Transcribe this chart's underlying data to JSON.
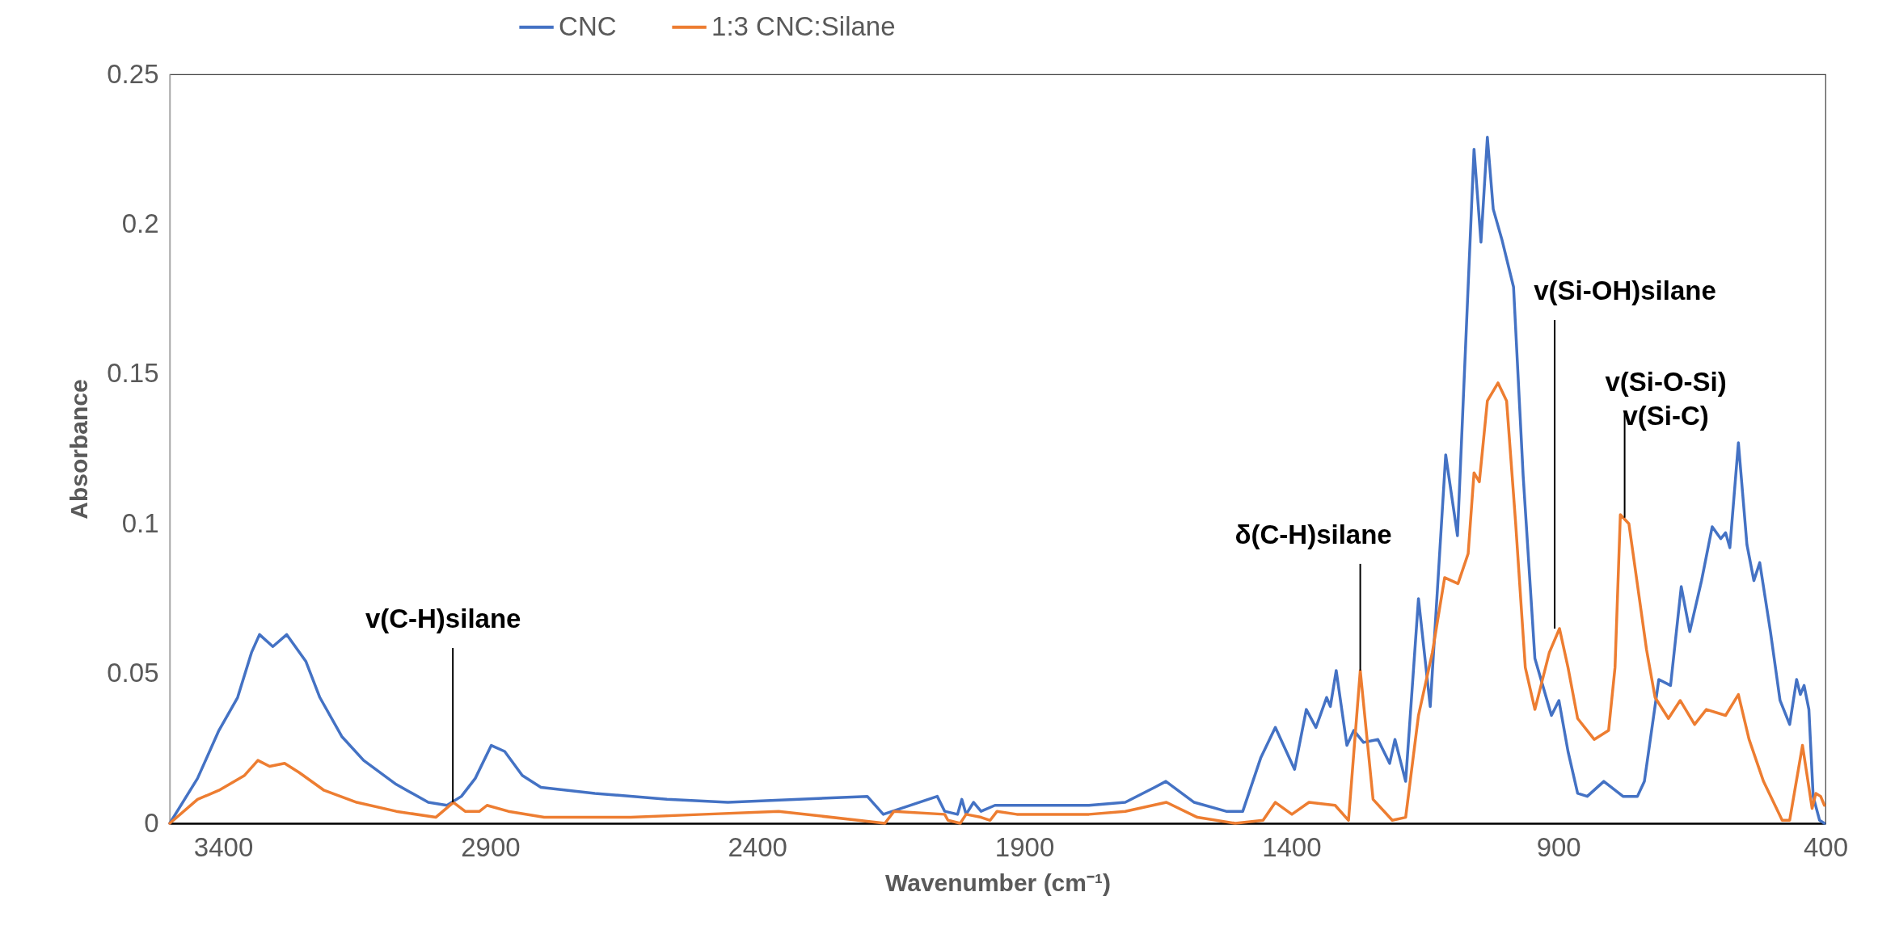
{
  "chart_data": {
    "type": "line",
    "xlabel": "Wavenumber (cm⁻¹)",
    "ylabel": "Absorbance",
    "xlim": [
      3500,
      400
    ],
    "xticks": [
      3400,
      2900,
      2400,
      1900,
      1400,
      900,
      400
    ],
    "ylim": [
      0,
      0.25
    ],
    "yticks": [
      0,
      0.05,
      0.1,
      0.15,
      0.2,
      0.25
    ],
    "legend": "top",
    "series": [
      {
        "name": "CNC",
        "color": "#4472c4",
        "x": [
          3500,
          3448,
          3408,
          3373,
          3347,
          3332,
          3307,
          3281,
          3245,
          3219,
          3178,
          3137,
          3076,
          3016,
          2981,
          2954,
          2928,
          2898,
          2873,
          2840,
          2805,
          2704,
          2569,
          2455,
          2194,
          2164,
          2063,
          2049,
          2025,
          2017,
          2009,
          1995,
          1981,
          1955,
          1914,
          1779,
          1711,
          1656,
          1635,
          1582,
          1522,
          1491,
          1457,
          1430,
          1394,
          1372,
          1354,
          1334,
          1327,
          1316,
          1296,
          1283,
          1265,
          1238,
          1216,
          1206,
          1186,
          1162,
          1140,
          1111,
          1089,
          1058,
          1045,
          1033,
          1022,
          1006,
          984,
          966,
          944,
          913,
          899,
          882,
          864,
          846,
          815,
          779,
          752,
          739,
          712,
          690,
          670,
          654,
          632,
          612,
          596,
          587,
          579,
          563,
          547,
          534,
          523,
          503,
          485,
          467,
          454,
          447,
          440,
          431,
          423,
          411,
          402
        ],
        "values": [
          0,
          0.015,
          0.031,
          0.042,
          0.057,
          0.063,
          0.059,
          0.063,
          0.054,
          0.042,
          0.029,
          0.021,
          0.013,
          0.007,
          0.006,
          0.009,
          0.015,
          0.026,
          0.024,
          0.016,
          0.012,
          0.01,
          0.008,
          0.007,
          0.009,
          0.003,
          0.009,
          0.004,
          0.003,
          0.008,
          0.003,
          0.007,
          0.004,
          0.006,
          0.006,
          0.006,
          0.007,
          0.012,
          0.014,
          0.007,
          0.004,
          0.004,
          0.022,
          0.032,
          0.018,
          0.038,
          0.032,
          0.042,
          0.039,
          0.051,
          0.026,
          0.031,
          0.027,
          0.028,
          0.02,
          0.028,
          0.014,
          0.075,
          0.039,
          0.123,
          0.096,
          0.225,
          0.194,
          0.229,
          0.205,
          0.195,
          0.179,
          0.116,
          0.055,
          0.036,
          0.041,
          0.024,
          0.01,
          0.009,
          0.014,
          0.009,
          0.009,
          0.014,
          0.048,
          0.046,
          0.079,
          0.064,
          0.081,
          0.099,
          0.095,
          0.097,
          0.092,
          0.127,
          0.093,
          0.081,
          0.087,
          0.064,
          0.041,
          0.033,
          0.048,
          0.043,
          0.046,
          0.038,
          0.009,
          0.001,
          0
        ]
      },
      {
        "name": "1:3 CNC:Silane",
        "color": "#ed7d31",
        "x": [
          3500,
          3448,
          3408,
          3360,
          3335,
          3313,
          3285,
          3258,
          3211,
          3150,
          3076,
          3002,
          2969,
          2947,
          2920,
          2906,
          2866,
          2799,
          2637,
          2500,
          2360,
          2161,
          2144,
          2049,
          2043,
          2020,
          2009,
          1981,
          1964,
          1951,
          1914,
          1779,
          1711,
          1634,
          1576,
          1505,
          1453,
          1430,
          1399,
          1367,
          1318,
          1293,
          1271,
          1247,
          1211,
          1186,
          1162,
          1136,
          1113,
          1088,
          1069,
          1058,
          1048,
          1033,
          1013,
          997,
          980,
          962,
          944,
          917,
          898,
          882,
          864,
          833,
          806,
          794,
          784,
          768,
          735,
          719,
          694,
          672,
          645,
          623,
          587,
          563,
          543,
          516,
          481,
          467,
          443,
          425,
          418,
          409,
          402
        ],
        "values": [
          0,
          0.008,
          0.011,
          0.016,
          0.021,
          0.019,
          0.02,
          0.017,
          0.011,
          0.007,
          0.004,
          0.002,
          0.007,
          0.004,
          0.004,
          0.006,
          0.004,
          0.002,
          0.002,
          0.003,
          0.004,
          0,
          0.004,
          0.003,
          0.001,
          0,
          0.003,
          0.002,
          0.001,
          0.004,
          0.003,
          0.003,
          0.004,
          0.007,
          0.002,
          0,
          0.001,
          0.007,
          0.003,
          0.007,
          0.006,
          0.001,
          0.051,
          0.008,
          0.001,
          0.002,
          0.036,
          0.057,
          0.082,
          0.08,
          0.09,
          0.117,
          0.114,
          0.141,
          0.147,
          0.141,
          0.1,
          0.052,
          0.038,
          0.057,
          0.065,
          0.052,
          0.035,
          0.028,
          0.031,
          0.052,
          0.103,
          0.1,
          0.058,
          0.042,
          0.035,
          0.041,
          0.033,
          0.038,
          0.036,
          0.043,
          0.028,
          0.014,
          0.001,
          0.001,
          0.026,
          0.005,
          0.01,
          0.009,
          0.006
        ]
      }
    ],
    "annotations": [
      {
        "text": "v(C-H)silane",
        "x": 2970,
        "y": 0.007
      },
      {
        "text": "δ(C-H)silane",
        "x": 1271,
        "y": 0.051
      },
      {
        "text": "v(Si-OH)silane",
        "x": 907,
        "y": 0.065
      },
      {
        "text": "v(Si-O-Si)\nv(Si-C)",
        "x": 776,
        "y": 0.102
      }
    ]
  }
}
